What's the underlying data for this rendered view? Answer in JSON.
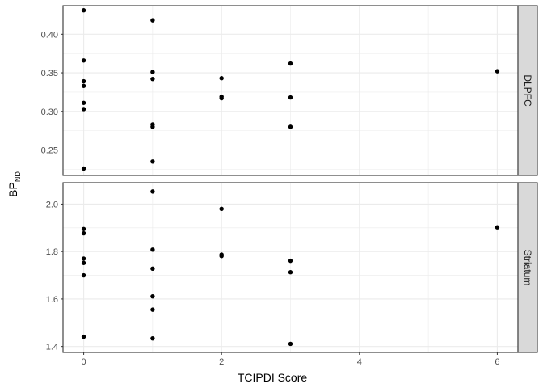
{
  "chart_data": {
    "type": "scatter",
    "xlabel": "TCIPDI Score",
    "ylabel_main": "BP",
    "ylabel_sub": "ND",
    "xlim": [
      -0.3,
      6.3
    ],
    "xticks": [
      0,
      2,
      4,
      6
    ],
    "xtick_labels": [
      "0",
      "2",
      "4",
      "6"
    ],
    "point_color": "#000000",
    "strip_fill": "#d9d9d9",
    "grid_color": "#ebebeb",
    "panels": [
      {
        "strip_label": "DLPFC",
        "ylim": [
          0.217,
          0.437
        ],
        "yticks": [
          0.25,
          0.3,
          0.35,
          0.4
        ],
        "ytick_labels": [
          "0.25",
          "0.30",
          "0.35",
          "0.40"
        ],
        "points": [
          {
            "x": 0,
            "y": 0.431
          },
          {
            "x": 0,
            "y": 0.366
          },
          {
            "x": 0,
            "y": 0.339
          },
          {
            "x": 0,
            "y": 0.333
          },
          {
            "x": 0,
            "y": 0.311
          },
          {
            "x": 0,
            "y": 0.303
          },
          {
            "x": 0,
            "y": 0.226
          },
          {
            "x": 1,
            "y": 0.418
          },
          {
            "x": 1,
            "y": 0.351
          },
          {
            "x": 1,
            "y": 0.342
          },
          {
            "x": 1,
            "y": 0.283
          },
          {
            "x": 1,
            "y": 0.28
          },
          {
            "x": 1,
            "y": 0.235
          },
          {
            "x": 2,
            "y": 0.343
          },
          {
            "x": 2,
            "y": 0.319
          },
          {
            "x": 2,
            "y": 0.317
          },
          {
            "x": 3,
            "y": 0.362
          },
          {
            "x": 3,
            "y": 0.318
          },
          {
            "x": 3,
            "y": 0.28
          },
          {
            "x": 6,
            "y": 0.352
          }
        ]
      },
      {
        "strip_label": "Striatum",
        "ylim": [
          1.375,
          2.09
        ],
        "yticks": [
          1.4,
          1.6,
          1.8,
          2.0
        ],
        "ytick_labels": [
          "1.4",
          "1.6",
          "1.8",
          "2.0"
        ],
        "points": [
          {
            "x": 0,
            "y": 1.895
          },
          {
            "x": 0,
            "y": 1.877
          },
          {
            "x": 0,
            "y": 1.77
          },
          {
            "x": 0,
            "y": 1.752
          },
          {
            "x": 0,
            "y": 1.7
          },
          {
            "x": 0,
            "y": 1.441
          },
          {
            "x": 1,
            "y": 2.053
          },
          {
            "x": 1,
            "y": 1.808
          },
          {
            "x": 1,
            "y": 1.728
          },
          {
            "x": 1,
            "y": 1.611
          },
          {
            "x": 1,
            "y": 1.555
          },
          {
            "x": 1,
            "y": 1.434
          },
          {
            "x": 2,
            "y": 1.98
          },
          {
            "x": 2,
            "y": 1.787
          },
          {
            "x": 2,
            "y": 1.781
          },
          {
            "x": 3,
            "y": 1.761
          },
          {
            "x": 3,
            "y": 1.713
          },
          {
            "x": 3,
            "y": 1.411
          },
          {
            "x": 6,
            "y": 1.902
          }
        ]
      }
    ]
  }
}
